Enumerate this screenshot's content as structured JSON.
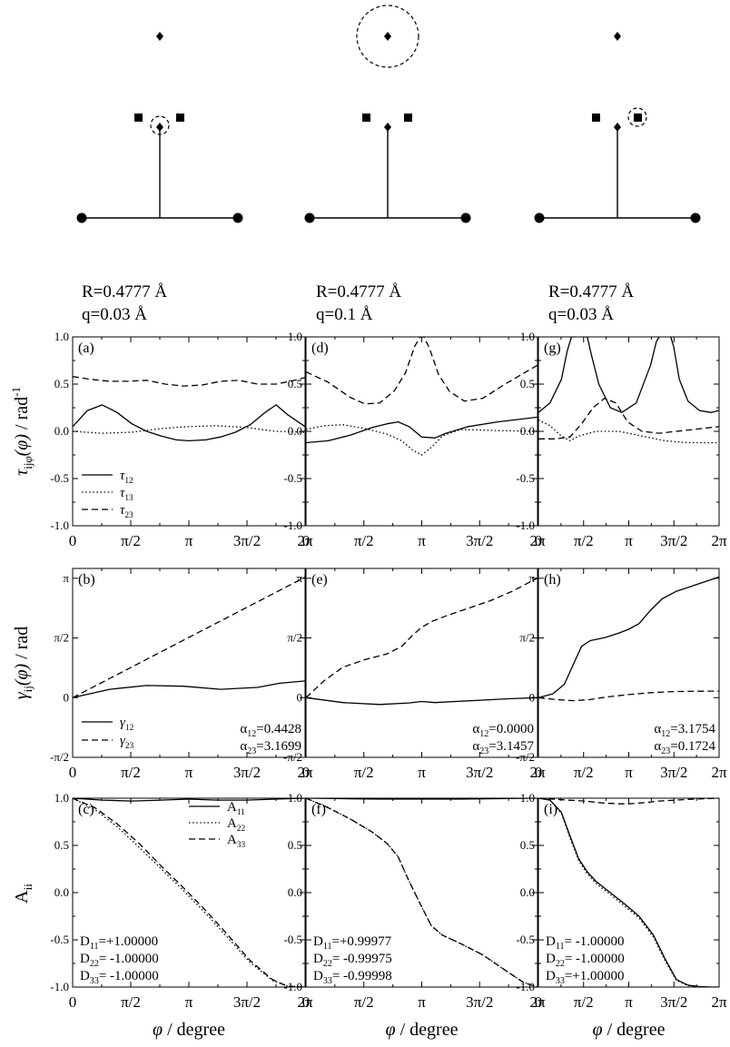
{
  "x_ticks": [
    "0",
    "π/2",
    "π",
    "3π/2",
    "2π"
  ],
  "x_label_symbol": "φ",
  "x_label_unit": "degree",
  "ylabels": {
    "row1": {
      "main": "τ",
      "sub": "ij",
      "subphi": "φ",
      "arg": "(φ)",
      "unit": "rad",
      "unit_sup": "-1"
    },
    "row2": {
      "main": "γ",
      "sub": "ij",
      "arg": "(φ)",
      "unit": "rad"
    },
    "row3": {
      "main": "A",
      "sub": "ii"
    }
  },
  "yticks": {
    "row1": [
      "1.0",
      "0.5",
      "0.0",
      "-0.5",
      "-1.0"
    ],
    "row2": [
      "π",
      "π/2",
      "0",
      "-π/2"
    ],
    "row3": [
      "1.0",
      "0.5",
      "0.0",
      "-0.5",
      "-1.0"
    ]
  },
  "columns": [
    {
      "R_text": "R=0.4777 Å",
      "q_text": "q=0.03 Å",
      "circle": "lower-diamond"
    },
    {
      "R_text": "R=0.4777 Å",
      "q_text": "q=0.1 Å",
      "circle": "top-diamond"
    },
    {
      "R_text": "R=0.4777 Å",
      "q_text": "q=0.03 Å",
      "circle": "right-square"
    }
  ],
  "legends": {
    "tau": [
      {
        "main": "τ",
        "sub": "12",
        "style": "solid"
      },
      {
        "main": "τ",
        "sub": "13",
        "style": "dotted"
      },
      {
        "main": "τ",
        "sub": "23",
        "style": "dashed"
      }
    ],
    "gamma": [
      {
        "main": "γ",
        "sub": "12",
        "style": "solid"
      },
      {
        "main": "γ",
        "sub": "23",
        "style": "dashed"
      }
    ],
    "A": [
      {
        "main": "A",
        "sub": "11",
        "style": "solid"
      },
      {
        "main": "A",
        "sub": "22",
        "style": "dotted"
      },
      {
        "main": "A",
        "sub": "33",
        "style": "dashed"
      }
    ]
  },
  "chart_data": [
    {
      "type": "line",
      "panel": "a",
      "label": "(a)",
      "xlim": [
        0,
        6.2832
      ],
      "ylim": [
        -1,
        1
      ],
      "series": [
        {
          "name": "τ12",
          "style": "solid",
          "x": [
            0,
            0.4,
            0.8,
            1.2,
            1.6,
            2.0,
            2.4,
            2.8,
            3.14,
            3.6,
            4.0,
            4.4,
            4.8,
            5.2,
            5.5,
            5.8,
            6.2832
          ],
          "y": [
            0.05,
            0.22,
            0.28,
            0.2,
            0.08,
            0.0,
            -0.05,
            -0.09,
            -0.1,
            -0.09,
            -0.06,
            -0.01,
            0.07,
            0.2,
            0.28,
            0.18,
            0.05
          ]
        },
        {
          "name": "τ13",
          "style": "dotted",
          "x": [
            0,
            0.8,
            1.6,
            2.4,
            3.14,
            3.9,
            4.7,
            5.5,
            6.2832
          ],
          "y": [
            0.0,
            -0.02,
            -0.01,
            0.03,
            0.05,
            0.06,
            0.04,
            0.0,
            -0.01
          ]
        },
        {
          "name": "τ23",
          "style": "dashed",
          "x": [
            0,
            0.5,
            1.0,
            1.5,
            2.0,
            2.5,
            3.0,
            3.5,
            4.0,
            4.5,
            5.0,
            5.5,
            6.0,
            6.2832
          ],
          "y": [
            0.58,
            0.55,
            0.53,
            0.53,
            0.54,
            0.5,
            0.48,
            0.49,
            0.53,
            0.54,
            0.5,
            0.5,
            0.54,
            0.57
          ]
        }
      ]
    },
    {
      "type": "line",
      "panel": "b",
      "label": "(b)",
      "xlim": [
        0,
        6.2832
      ],
      "ylim": [
        -1.5708,
        3.4
      ],
      "annotation": [
        "α12=0.4428",
        "α23=3.1699"
      ],
      "series": [
        {
          "name": "γ12",
          "style": "solid",
          "x": [
            0,
            1.0,
            2.0,
            3.0,
            4.0,
            5.0,
            5.6,
            6.2832
          ],
          "y": [
            0.0,
            0.22,
            0.32,
            0.3,
            0.22,
            0.27,
            0.38,
            0.44
          ]
        },
        {
          "name": "γ23",
          "style": "dashed",
          "x": [
            0,
            6.2832
          ],
          "y": [
            0.0,
            3.1699
          ]
        }
      ]
    },
    {
      "type": "line",
      "panel": "c",
      "label": "(c)",
      "xlim": [
        0,
        6.2832
      ],
      "ylim": [
        -1,
        1
      ],
      "annotation": [
        "D11=+1.00000",
        "D22= -1.00000",
        "D33= -1.00000"
      ],
      "series": [
        {
          "name": "A11",
          "style": "solid",
          "x": [
            0,
            0.8,
            1.6,
            2.4,
            3.14,
            3.9,
            4.7,
            5.5,
            6.2832
          ],
          "y": [
            1.0,
            0.98,
            0.97,
            0.98,
            0.99,
            0.98,
            0.98,
            0.99,
            1.0
          ]
        },
        {
          "name": "A22",
          "style": "dotted",
          "x": [
            0,
            0.6,
            1.2,
            1.8,
            2.4,
            3.0,
            3.6,
            4.2,
            4.8,
            5.4,
            5.8,
            6.2832
          ],
          "y": [
            1.0,
            0.88,
            0.7,
            0.48,
            0.25,
            0.02,
            -0.22,
            -0.48,
            -0.74,
            -0.93,
            -0.99,
            -1.0
          ]
        },
        {
          "name": "A33",
          "style": "dashed",
          "x": [
            0,
            0.6,
            1.2,
            1.8,
            2.4,
            3.0,
            3.6,
            4.2,
            4.8,
            5.4,
            5.8,
            6.2832
          ],
          "y": [
            1.0,
            0.9,
            0.73,
            0.52,
            0.28,
            0.05,
            -0.19,
            -0.45,
            -0.72,
            -0.92,
            -0.99,
            -1.0
          ]
        }
      ]
    },
    {
      "type": "line",
      "panel": "d",
      "label": "(d)",
      "xlim": [
        0,
        6.2832
      ],
      "ylim": [
        -1,
        1
      ],
      "series": [
        {
          "name": "τ12",
          "style": "solid",
          "x": [
            0,
            0.6,
            1.2,
            1.8,
            2.2,
            2.5,
            2.8,
            3.14,
            3.5,
            3.8,
            4.4,
            5.2,
            6.2832
          ],
          "y": [
            -0.12,
            -0.1,
            -0.04,
            0.04,
            0.08,
            0.1,
            0.05,
            -0.06,
            -0.07,
            -0.02,
            0.05,
            0.1,
            0.15
          ]
        },
        {
          "name": "τ13",
          "style": "dotted",
          "x": [
            0,
            0.5,
            1.0,
            1.6,
            2.2,
            2.6,
            2.9,
            3.14,
            3.4,
            3.7,
            4.2,
            5.0,
            6.2832
          ],
          "y": [
            0.02,
            0.06,
            0.07,
            0.03,
            -0.03,
            -0.1,
            -0.2,
            -0.25,
            -0.17,
            -0.05,
            0.02,
            0.01,
            0.0
          ]
        },
        {
          "name": "τ23",
          "style": "dashed",
          "x": [
            0,
            0.6,
            1.2,
            1.6,
            2.0,
            2.4,
            2.7,
            2.95,
            3.1,
            3.14,
            3.2,
            3.35,
            3.6,
            3.9,
            4.3,
            4.8,
            5.4,
            6.2832
          ],
          "y": [
            0.63,
            0.52,
            0.36,
            0.29,
            0.3,
            0.43,
            0.62,
            0.9,
            1.0,
            1.0,
            1.0,
            0.88,
            0.6,
            0.42,
            0.32,
            0.35,
            0.5,
            0.7
          ]
        }
      ]
    },
    {
      "type": "line",
      "panel": "e",
      "label": "(e)",
      "xlim": [
        0,
        6.2832
      ],
      "ylim": [
        -1.5708,
        3.4
      ],
      "annotation": [
        "α12=0.0000",
        "α23=3.1457"
      ],
      "series": [
        {
          "name": "γ12",
          "style": "solid",
          "x": [
            0,
            1.0,
            2.0,
            2.8,
            3.14,
            3.5,
            4.5,
            5.5,
            6.2832
          ],
          "y": [
            0.0,
            -0.13,
            -0.18,
            -0.14,
            -0.1,
            -0.13,
            -0.08,
            -0.03,
            0.0
          ]
        },
        {
          "name": "γ23",
          "style": "dashed",
          "x": [
            0,
            0.5,
            1.0,
            1.6,
            2.2,
            2.6,
            2.9,
            3.14,
            3.4,
            3.8,
            4.4,
            5.0,
            5.6,
            6.2832
          ],
          "y": [
            0.0,
            0.45,
            0.8,
            1.0,
            1.15,
            1.35,
            1.65,
            1.85,
            2.0,
            2.15,
            2.35,
            2.55,
            2.8,
            3.1457
          ]
        }
      ]
    },
    {
      "type": "line",
      "panel": "f",
      "label": "(f)",
      "xlim": [
        0,
        6.2832
      ],
      "ylim": [
        -1,
        1
      ],
      "annotation": [
        "D11=+0.99977",
        "D22= -0.99975",
        "D33= -0.99998"
      ],
      "series": [
        {
          "name": "A11",
          "style": "solid",
          "x": [
            0,
            1.0,
            2.0,
            3.14,
            4.2,
            5.2,
            6.2832
          ],
          "y": [
            1.0,
            0.995,
            0.99,
            0.99,
            0.99,
            0.995,
            1.0
          ]
        },
        {
          "name": "A22",
          "style": "dotted",
          "x": [
            0,
            0.6,
            1.2,
            1.8,
            2.2,
            2.5,
            2.8,
            3.14,
            3.4,
            3.7,
            4.2,
            4.8,
            5.4,
            5.9,
            6.2832
          ],
          "y": [
            1.0,
            0.9,
            0.78,
            0.64,
            0.52,
            0.38,
            0.12,
            -0.15,
            -0.35,
            -0.45,
            -0.54,
            -0.66,
            -0.82,
            -0.95,
            -1.0
          ]
        },
        {
          "name": "A33",
          "style": "dashed",
          "x": [
            0,
            0.6,
            1.2,
            1.8,
            2.2,
            2.5,
            2.8,
            3.14,
            3.4,
            3.7,
            4.2,
            4.8,
            5.4,
            5.9,
            6.2832
          ],
          "y": [
            1.0,
            0.9,
            0.78,
            0.64,
            0.52,
            0.38,
            0.12,
            -0.15,
            -0.35,
            -0.45,
            -0.54,
            -0.66,
            -0.82,
            -0.95,
            -1.0
          ]
        }
      ]
    },
    {
      "type": "line",
      "panel": "g",
      "label": "(g)",
      "xlim": [
        0,
        6.2832
      ],
      "ylim": [
        -1,
        1
      ],
      "series": [
        {
          "name": "τ12",
          "style": "solid",
          "x": [
            0,
            0.4,
            0.8,
            1.0,
            1.15,
            1.25,
            1.3
          ],
          "y": [
            0.2,
            0.3,
            0.55,
            0.85,
            1.0,
            1.0,
            1.0
          ]
        },
        {
          "name": "τ12b",
          "style": "solid",
          "x": [
            1.6,
            1.7,
            1.85,
            2.1,
            2.5,
            2.9,
            3.4,
            3.9,
            4.1,
            4.2
          ],
          "y": [
            1.0,
            1.0,
            0.8,
            0.5,
            0.25,
            0.2,
            0.3,
            0.7,
            0.95,
            1.0
          ]
        },
        {
          "name": "τ12c",
          "style": "solid",
          "x": [
            4.6,
            4.7,
            4.9,
            5.2,
            5.6,
            6.0,
            6.2832
          ],
          "y": [
            1.0,
            0.9,
            0.55,
            0.32,
            0.22,
            0.2,
            0.22
          ]
        },
        {
          "name": "τ13",
          "style": "dotted",
          "x": [
            0,
            0.4,
            0.8,
            1.1,
            1.4,
            2.0,
            2.8,
            3.6,
            4.4,
            5.2,
            6.2832
          ],
          "y": [
            0.12,
            0.06,
            -0.05,
            -0.1,
            -0.05,
            0.0,
            0.0,
            -0.05,
            -0.1,
            -0.12,
            -0.12
          ]
        },
        {
          "name": "τ23",
          "style": "dashed",
          "x": [
            0,
            0.6,
            1.1,
            1.5,
            1.9,
            2.3,
            2.7,
            3.1,
            3.6,
            4.2,
            4.8,
            5.4,
            6.2832
          ],
          "y": [
            -0.08,
            -0.08,
            -0.06,
            0.08,
            0.25,
            0.35,
            0.3,
            0.1,
            0.0,
            -0.02,
            0.0,
            0.02,
            0.05
          ]
        }
      ]
    },
    {
      "type": "line",
      "panel": "h",
      "label": "(h)",
      "xlim": [
        0,
        6.2832
      ],
      "ylim": [
        -1.5708,
        3.4
      ],
      "annotation": [
        "α12=3.1754",
        "α23=0.1724"
      ],
      "series": [
        {
          "name": "γ12",
          "style": "solid",
          "x": [
            0,
            0.5,
            0.9,
            1.2,
            1.5,
            1.8,
            2.3,
            2.8,
            3.14,
            3.5,
            3.9,
            4.3,
            4.8,
            5.4,
            6.2832
          ],
          "y": [
            0.0,
            0.1,
            0.35,
            0.85,
            1.35,
            1.5,
            1.58,
            1.7,
            1.8,
            1.95,
            2.3,
            2.6,
            2.8,
            2.95,
            3.1754
          ]
        },
        {
          "name": "γ23",
          "style": "dashed",
          "x": [
            0,
            0.6,
            1.2,
            1.8,
            2.4,
            3.14,
            3.9,
            4.7,
            5.5,
            6.2832
          ],
          "y": [
            0.0,
            -0.05,
            -0.08,
            -0.05,
            0.02,
            0.08,
            0.13,
            0.16,
            0.17,
            0.1724
          ]
        }
      ]
    },
    {
      "type": "line",
      "panel": "i",
      "label": "(i)",
      "xlim": [
        0,
        6.2832
      ],
      "ylim": [
        -1,
        1
      ],
      "annotation": [
        "D11= -1.00000",
        "D22= -1.00000",
        "D33=+1.00000"
      ],
      "series": [
        {
          "name": "A11",
          "style": "solid",
          "x": [
            0,
            0.4,
            0.8,
            1.1,
            1.4,
            1.7,
            2.0,
            2.5,
            3.0,
            3.5,
            4.0,
            4.4,
            4.8,
            5.2,
            5.6,
            6.0,
            6.2832
          ],
          "y": [
            1.0,
            0.98,
            0.85,
            0.6,
            0.36,
            0.22,
            0.12,
            0.0,
            -0.12,
            -0.25,
            -0.45,
            -0.7,
            -0.92,
            -0.98,
            -0.995,
            -1.0,
            -1.0
          ]
        },
        {
          "name": "A22",
          "style": "dotted",
          "x": [
            0,
            0.4,
            0.8,
            1.1,
            1.4,
            1.7,
            2.0,
            2.5,
            3.0,
            3.5,
            4.0,
            4.4,
            4.8,
            5.2,
            5.6,
            6.0,
            6.2832
          ],
          "y": [
            1.0,
            0.98,
            0.84,
            0.58,
            0.34,
            0.2,
            0.1,
            -0.02,
            -0.14,
            -0.27,
            -0.47,
            -0.72,
            -0.93,
            -0.985,
            -0.995,
            -1.0,
            -1.0
          ]
        },
        {
          "name": "A33",
          "style": "dashed",
          "x": [
            0,
            0.5,
            1.0,
            1.6,
            2.2,
            2.8,
            3.14,
            3.6,
            4.2,
            4.8,
            5.4,
            6.2832
          ],
          "y": [
            1.0,
            0.99,
            0.98,
            0.97,
            0.95,
            0.94,
            0.94,
            0.95,
            0.97,
            0.98,
            0.99,
            1.0
          ]
        }
      ]
    }
  ]
}
